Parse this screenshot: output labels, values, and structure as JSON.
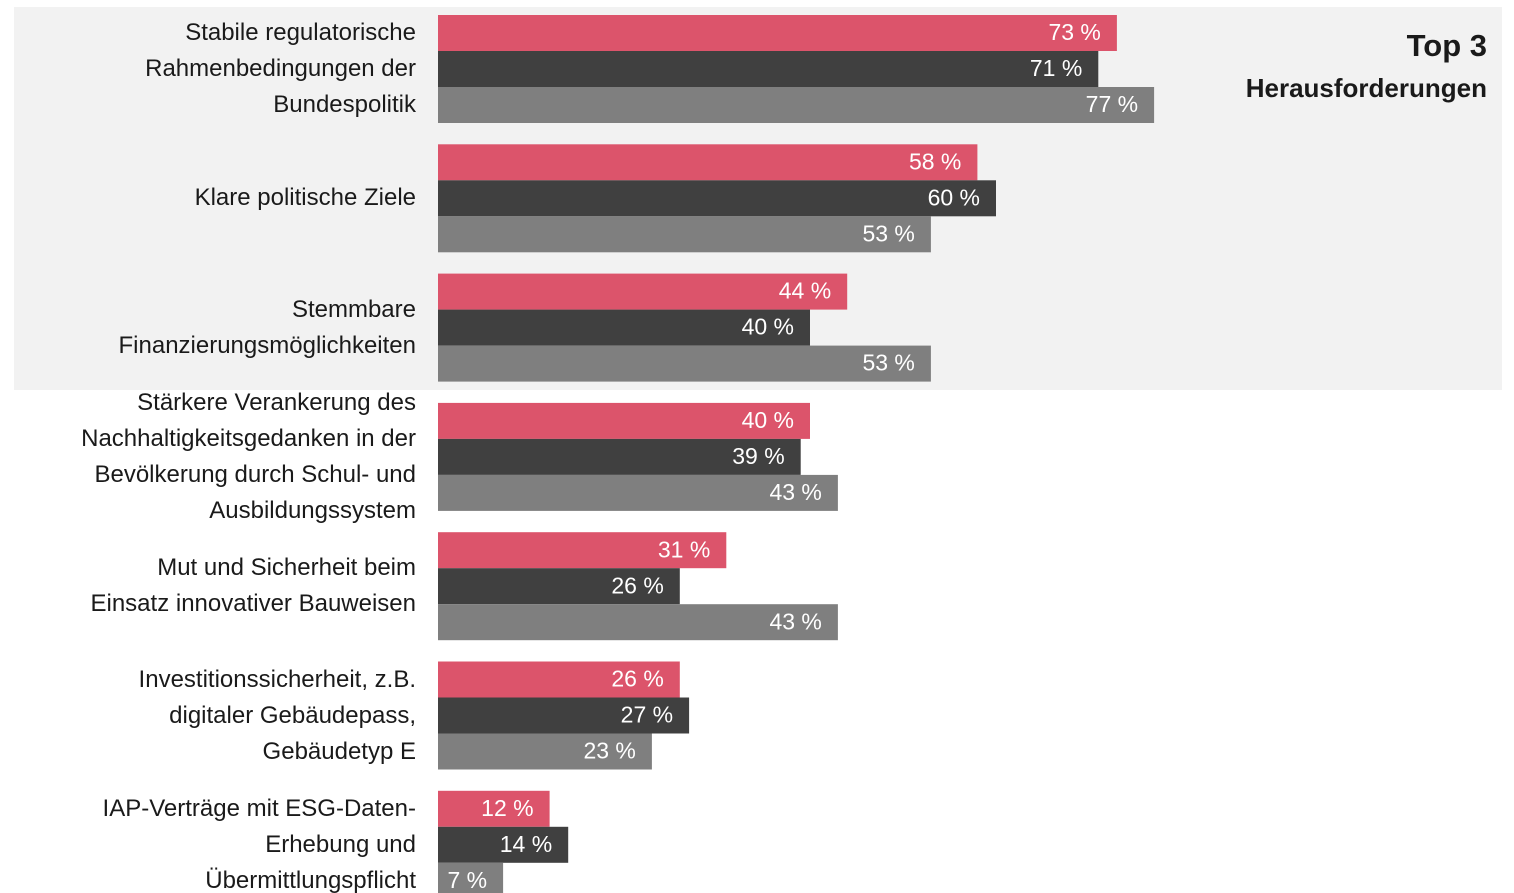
{
  "chart_data": {
    "type": "bar",
    "orientation": "horizontal",
    "annotations": [
      "Top 3",
      "Herausforderungen"
    ],
    "categories": [
      "Stabile regulatorische\nRahmenbedingungen der\nBundespolitik",
      "Klare politische Ziele",
      "Stemmbare\nFinanzierungsmöglichkeiten",
      "Stärkere Verankerung des\nNachhaltigkeitsgedanken in der\nBevölkerung durch Schul- und\nAusbildungssystem",
      "Mut und Sicherheit beim\nEinsatz innovativer Bauweisen",
      "Investitionssicherheit, z.B.\ndigitaler Gebäudepass,\nGebäudetyp E",
      "IAP-Verträge mit ESG-Daten-\nErhebung und\nÜbermittlungspflicht"
    ],
    "series": [
      {
        "color": "#dc546b",
        "values": [
          73,
          58,
          44,
          40,
          31,
          26,
          12
        ],
        "value_labels": [
          "73 %",
          "58 %",
          "44 %",
          "40 %",
          "31 %",
          "26 %",
          "12 %"
        ]
      },
      {
        "color": "#404040",
        "values": [
          71,
          60,
          40,
          39,
          26,
          27,
          14
        ],
        "value_labels": [
          "71 %",
          "60 %",
          "40 %",
          "39 %",
          "26 %",
          "27 %",
          "14 %"
        ]
      },
      {
        "color": "#7f7f7f",
        "values": [
          77,
          53,
          53,
          43,
          43,
          23,
          7
        ],
        "value_labels": [
          "77 %",
          "53 %",
          "53 %",
          "43 %",
          "43 %",
          "23 %",
          "7 %"
        ]
      }
    ]
  }
}
